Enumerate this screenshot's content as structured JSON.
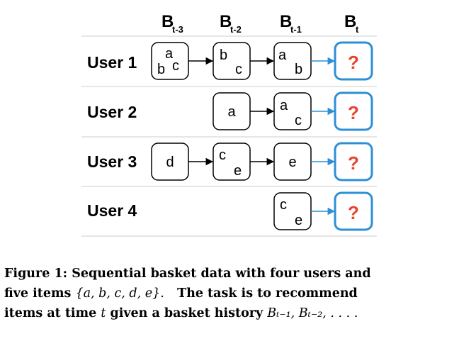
{
  "columns": [
    {
      "label": "B",
      "sub": "t-3"
    },
    {
      "label": "B",
      "sub": "t-2"
    },
    {
      "label": "B",
      "sub": "t-1"
    },
    {
      "label": "B",
      "sub": "t"
    }
  ],
  "users": [
    {
      "name": "User 1"
    },
    {
      "name": "User 2"
    },
    {
      "name": "User 3"
    },
    {
      "name": "User 4"
    }
  ],
  "baskets": {
    "u1_t3": [
      "a",
      "b",
      "c"
    ],
    "u1_t2": [
      "b",
      "c"
    ],
    "u1_t1": [
      "a",
      "b"
    ],
    "u2_t2": [
      "a"
    ],
    "u2_t1": [
      "a",
      "c"
    ],
    "u3_t3": [
      "d"
    ],
    "u3_t2": [
      "c",
      "e"
    ],
    "u3_t1": [
      "e"
    ],
    "u4_t1": [
      "c",
      "e"
    ]
  },
  "target_symbol": "?",
  "colors": {
    "target_border": "#2d8fd5",
    "target_question": "#e8432a",
    "target_arrow": "#2d8fd5",
    "row_lines": "#cccccc"
  },
  "caption": {
    "line1": "Figure 1: Sequential basket data with four users and",
    "line2_text": "five items",
    "line2_math": "{a, b, c, d, e}.",
    "line2_rest": "The task is to recommend",
    "line3_text": "items at time",
    "line3_math_t": "t",
    "line3_rest": "given a basket history",
    "line3_math_hist": "Bₜ₋₁, Bₜ₋₂, . . . ."
  }
}
